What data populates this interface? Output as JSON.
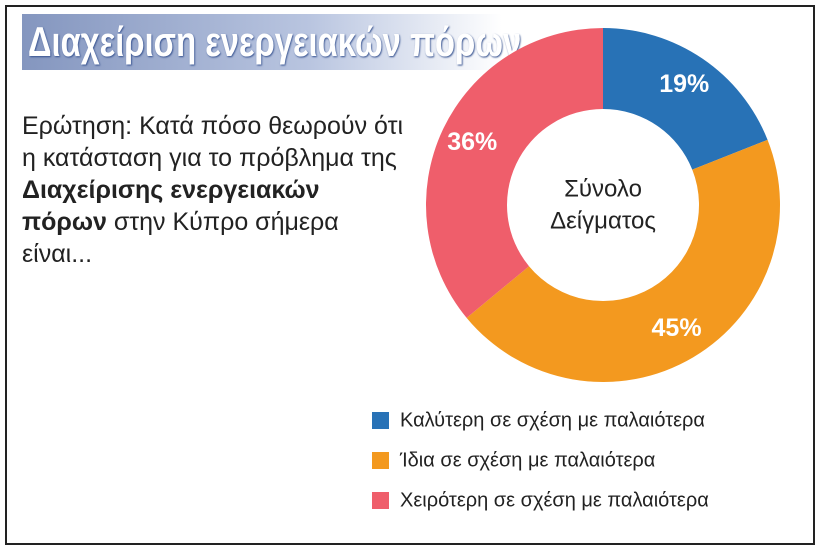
{
  "chart_data": {
    "type": "donut",
    "title": "Διαχείριση ενεργειακών πόρων",
    "question": {
      "before": "Ερώτηση: Κατά πόσο θεωρούν ότι η κατάσταση για το πρόβλημα της ",
      "bold": "Διαχείρισης ενεργειακών πόρων",
      "after": " στην Κύπρο σήμερα είναι..."
    },
    "center_label": [
      "Σύνολο",
      "Δείγματος"
    ],
    "categories": [
      "Καλύτερη σε σχέση με παλαιότερα",
      "Ίδια σε σχέση με παλαιότερα",
      "Χειρότερη σε σχέση με παλαιότερα"
    ],
    "values": [
      19,
      45,
      36
    ],
    "value_labels": [
      "19%",
      "45%",
      "36%"
    ],
    "colors": [
      "#2872b6",
      "#f3991f",
      "#ef5e6b"
    ]
  }
}
